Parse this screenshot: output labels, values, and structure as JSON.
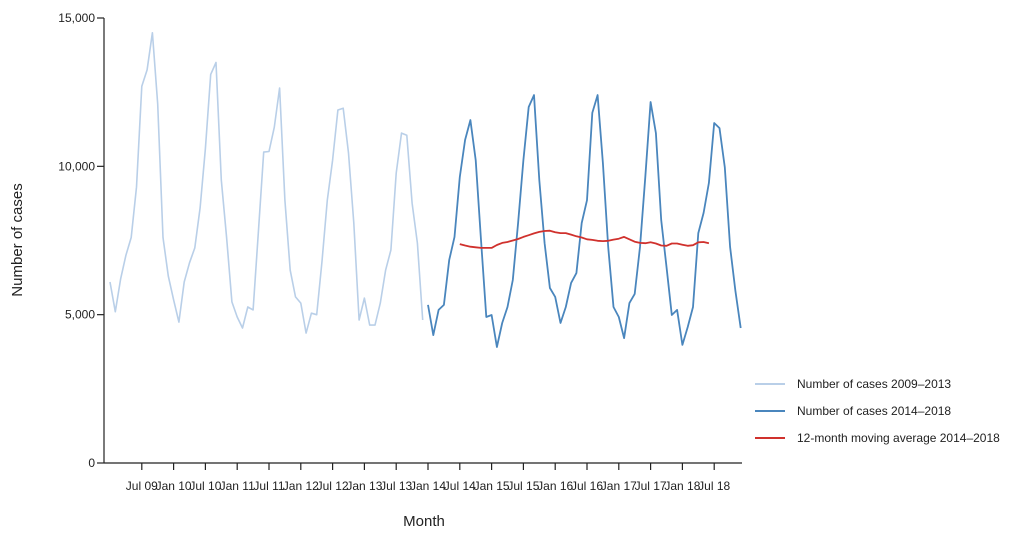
{
  "chart_data": {
    "type": "line",
    "title": "",
    "xlabel": "Month",
    "ylabel": "Number of cases",
    "ylim": [
      0,
      15000
    ],
    "yticks": [
      0,
      5000,
      10000,
      15000
    ],
    "ytick_labels": [
      "0",
      "5,000",
      "10,000",
      "15,000"
    ],
    "x_start": "Jan 2009",
    "x_end": "Dec 2018",
    "xtick_labels": [
      "Jul 09",
      "Jan 10",
      "Jul 10",
      "Jan 11",
      "Jul 11",
      "Jan 12",
      "Jul 12",
      "Jan 13",
      "Jul 13",
      "Jan 14",
      "Jul 14",
      "Jan 15",
      "Jul 15",
      "Jan 16",
      "Jul 16",
      "Jan 17",
      "Jul 17",
      "Jan 18",
      "Jul 18"
    ],
    "grid": false,
    "legend_position": "right",
    "series": [
      {
        "name": "Number of cases 2009–2013",
        "color": "#b9cfe8",
        "start": "Jan 2009",
        "values": [
          6100,
          5100,
          6200,
          7000,
          7600,
          9300,
          12700,
          13250,
          14500,
          12100,
          7600,
          6300,
          5500,
          4750,
          6100,
          6750,
          7250,
          8600,
          10600,
          13100,
          13500,
          9540,
          7600,
          5430,
          4920,
          4550,
          5260,
          5160,
          7800,
          10480,
          10500,
          11320,
          12640,
          8860,
          6500,
          5600,
          5390,
          4380,
          5050,
          5000,
          6800,
          8860,
          10210,
          11900,
          11960,
          10450,
          8090,
          4820,
          5560,
          4650,
          4650,
          5390,
          6500,
          7180,
          9770,
          11120,
          11050,
          8760,
          7410,
          4820
        ]
      },
      {
        "name": "Number of cases 2014–2018",
        "color": "#4a86bd",
        "start": "Jan 2014",
        "values": [
          5330,
          4310,
          5160,
          5330,
          6840,
          7620,
          9640,
          10890,
          11560,
          10210,
          7520,
          4920,
          4990,
          3910,
          4720,
          5260,
          6170,
          8090,
          10210,
          12000,
          12400,
          9540,
          7410,
          5900,
          5600,
          4720,
          5260,
          6070,
          6400,
          8090,
          8860,
          11800,
          12400,
          10110,
          7280,
          5260,
          4920,
          4210,
          5390,
          5700,
          7280,
          9640,
          12170,
          11120,
          8190,
          6610,
          4990,
          5160,
          3980,
          4580,
          5260,
          7750,
          8430,
          9440,
          11460,
          11290,
          9970,
          7280,
          5800,
          4550
        ]
      },
      {
        "name": "12-month moving average 2014–2018",
        "color": "#d0312d",
        "start": "Jul 2014",
        "values": [
          7380,
          7330,
          7290,
          7270,
          7250,
          7250,
          7250,
          7350,
          7420,
          7450,
          7500,
          7550,
          7620,
          7680,
          7740,
          7790,
          7820,
          7830,
          7780,
          7750,
          7750,
          7700,
          7640,
          7600,
          7540,
          7520,
          7490,
          7480,
          7490,
          7530,
          7560,
          7620,
          7540,
          7460,
          7420,
          7410,
          7440,
          7400,
          7330,
          7320,
          7400,
          7400,
          7360,
          7320,
          7340,
          7440,
          7450,
          7410
        ]
      }
    ]
  }
}
